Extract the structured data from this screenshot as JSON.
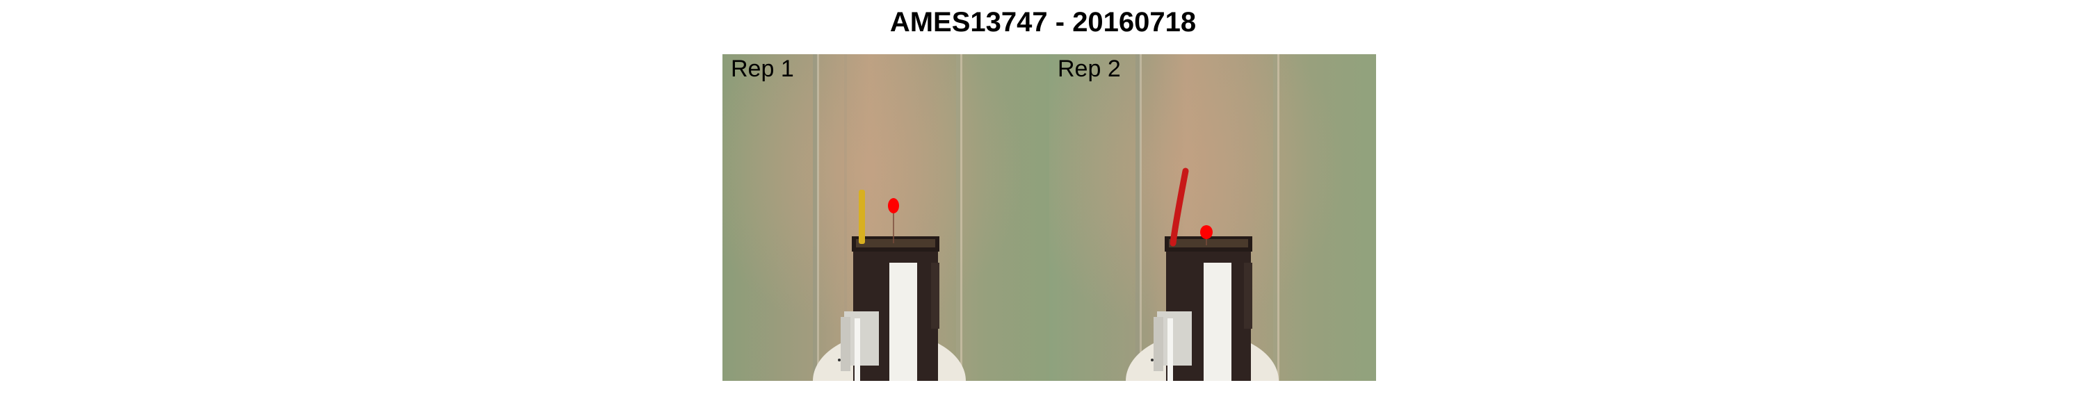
{
  "figure": {
    "title": "AMES13747 - 20160718"
  },
  "panels": [
    {
      "label": "Rep 1",
      "plant_color": "#d8b020",
      "marker_color": "#ff0000"
    },
    {
      "label": "Rep 2",
      "plant_color": "#c81818",
      "marker_color": "#ff0000"
    }
  ],
  "colors": {
    "background_green": "#8fa07c",
    "background_warm": "#b69c80",
    "pot": "#2f2320"
  }
}
